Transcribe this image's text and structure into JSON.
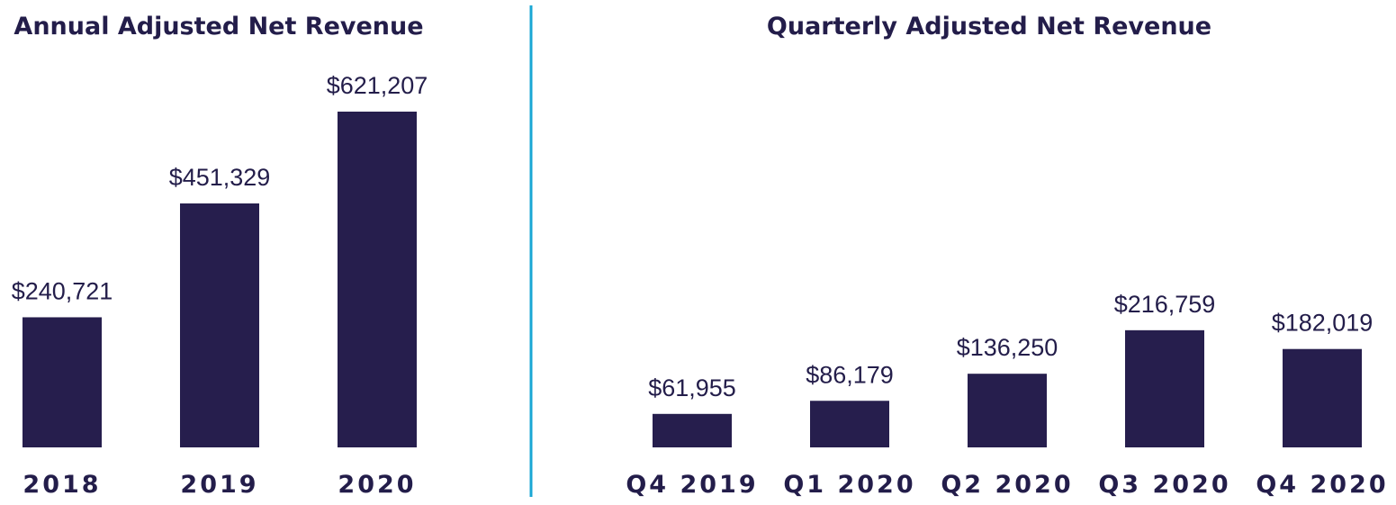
{
  "colors": {
    "bar": "#261e4d",
    "text": "#231d4a",
    "divider": "#1aa7d4"
  },
  "chart_data": [
    {
      "type": "bar",
      "title": "Annual Adjusted Net Revenue",
      "categories": [
        "2018",
        "2019",
        "2020"
      ],
      "values": [
        240721,
        451329,
        621207
      ],
      "value_labels": [
        "$240,721",
        "$451,329",
        "$621,207"
      ],
      "ylim": [
        0,
        700000
      ],
      "grid": false
    },
    {
      "type": "bar",
      "title": "Quarterly Adjusted Net Revenue",
      "categories": [
        "Q4 2019",
        "Q1 2020",
        "Q2 2020",
        "Q3 2020",
        "Q4 2020"
      ],
      "values": [
        61955,
        86179,
        136250,
        216759,
        182019
      ],
      "value_labels": [
        "$61,955",
        "$86,179",
        "$136,250",
        "$216,759",
        "$182,019"
      ],
      "ylim": [
        0,
        700000
      ],
      "grid": false
    }
  ]
}
